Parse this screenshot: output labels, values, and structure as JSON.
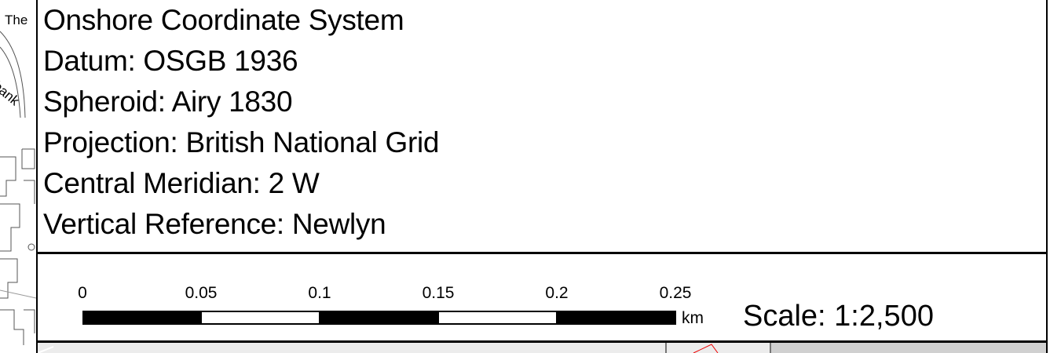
{
  "map_labels": {
    "the": "The",
    "bank": "bank"
  },
  "crs": {
    "lines": [
      "Onshore Coordinate System",
      "Datum: OSGB 1936",
      "Spheroid: Airy 1830",
      "Projection: British National Grid",
      "Central Meridian: 2 W",
      "Vertical Reference: Newlyn"
    ]
  },
  "scale_bar": {
    "ticks": [
      "0",
      "0.05",
      "0.1",
      "0.15",
      "0.2",
      "0.25"
    ],
    "unit": "km",
    "scale_text": "Scale: 1:2,500"
  }
}
